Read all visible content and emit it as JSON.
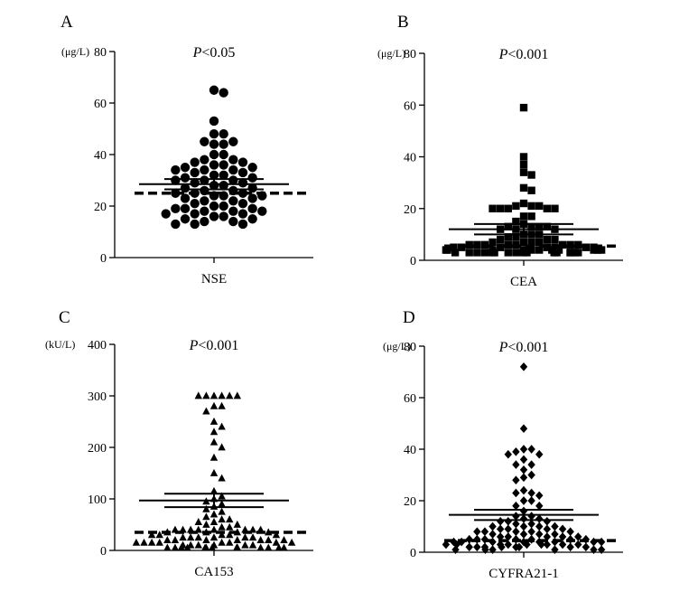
{
  "figure": {
    "x_axis_category_note": "single group per panel",
    "marker_color": "#000000"
  },
  "chart_data": [
    {
      "type": "scatter",
      "panel": "A",
      "title": "P<0.05",
      "p_prefix": "P",
      "p_rest": "<0.05",
      "xlabel": "NSE",
      "ylabel": "(μg/L)",
      "ylim": [
        0,
        80
      ],
      "yticks": [
        0,
        20,
        40,
        60,
        80
      ],
      "marker": "circle",
      "mean": 28.5,
      "sem_upper": 30.5,
      "sem_lower": 26.5,
      "cutoff": 25,
      "values": [
        13,
        13,
        13,
        14,
        14,
        15,
        15,
        16,
        16,
        17,
        17,
        17,
        18,
        18,
        18,
        19,
        19,
        19,
        20,
        20,
        21,
        21,
        22,
        22,
        23,
        23,
        24,
        24,
        24,
        25,
        25,
        25,
        26,
        26,
        27,
        27,
        28,
        28,
        29,
        29,
        30,
        30,
        30,
        31,
        31,
        32,
        32,
        33,
        33,
        34,
        34,
        34,
        35,
        35,
        36,
        36,
        37,
        37,
        38,
        38,
        40,
        40,
        44,
        44,
        45,
        45,
        48,
        48,
        53,
        64,
        65
      ]
    },
    {
      "type": "scatter",
      "panel": "B",
      "title": "P<0.001",
      "p_prefix": "P",
      "p_rest": "<0.001",
      "xlabel": "CEA",
      "ylabel": "(μg/L)",
      "ylim": [
        0,
        80
      ],
      "yticks": [
        0,
        20,
        40,
        60,
        80
      ],
      "marker": "square",
      "mean": 12,
      "sem_upper": 14,
      "sem_lower": 10,
      "cutoff": 5.5,
      "values": [
        3,
        3,
        3,
        3,
        3,
        3,
        3,
        3,
        3,
        3,
        3,
        3,
        3,
        3,
        3,
        3,
        4,
        4,
        4,
        4,
        4,
        4,
        4,
        4,
        4,
        4,
        4,
        4,
        5,
        5,
        5,
        5,
        5,
        5,
        5,
        6,
        6,
        6,
        6,
        6,
        6,
        6,
        6,
        7,
        7,
        7,
        7,
        8,
        8,
        8,
        9,
        9,
        10,
        10,
        10,
        12,
        12,
        12,
        13,
        13,
        13,
        13,
        14,
        15,
        17,
        17,
        20,
        20,
        20,
        20,
        20,
        21,
        21,
        21,
        22,
        27,
        28,
        33,
        34,
        37,
        40,
        59
      ]
    },
    {
      "type": "scatter",
      "panel": "C",
      "title": "P<0.001",
      "p_prefix": "P",
      "p_rest": "<0.001",
      "xlabel": "CA153",
      "ylabel": "(kU/L)",
      "ylim": [
        0,
        400
      ],
      "yticks": [
        0,
        100,
        200,
        300,
        400
      ],
      "marker": "triangle",
      "mean": 97,
      "sem_upper": 110,
      "sem_lower": 84,
      "cutoff": 35,
      "values": [
        5,
        5,
        5,
        5,
        5,
        5,
        5,
        5,
        5,
        5,
        5,
        5,
        5,
        5,
        10,
        10,
        10,
        10,
        10,
        10,
        15,
        15,
        15,
        15,
        15,
        15,
        15,
        15,
        20,
        20,
        20,
        20,
        20,
        20,
        20,
        25,
        25,
        25,
        25,
        25,
        25,
        30,
        30,
        30,
        30,
        30,
        35,
        35,
        35,
        35,
        40,
        40,
        40,
        40,
        40,
        40,
        40,
        40,
        45,
        45,
        50,
        50,
        55,
        55,
        60,
        60,
        65,
        70,
        75,
        80,
        85,
        90,
        95,
        100,
        105,
        115,
        140,
        150,
        180,
        200,
        210,
        230,
        240,
        250,
        270,
        280,
        280,
        300,
        300,
        300,
        300,
        300,
        300
      ]
    },
    {
      "type": "scatter",
      "panel": "D",
      "title": "P<0.001",
      "p_prefix": "P",
      "p_rest": "<0.001",
      "xlabel": "CYFRA21-1",
      "ylabel": "(μg/L)",
      "ylim": [
        0,
        80
      ],
      "yticks": [
        0,
        20,
        40,
        60,
        80
      ],
      "marker": "diamond",
      "mean": 14.5,
      "sem_upper": 16.5,
      "sem_lower": 12.5,
      "cutoff": 4.5,
      "values": [
        1,
        1,
        1,
        1,
        1,
        1,
        2,
        2,
        2,
        2,
        2,
        2,
        2,
        2,
        3,
        3,
        3,
        3,
        3,
        3,
        3,
        3,
        3,
        4,
        4,
        4,
        4,
        4,
        4,
        4,
        4,
        5,
        5,
        5,
        5,
        5,
        5,
        5,
        6,
        6,
        6,
        6,
        6,
        7,
        7,
        7,
        7,
        8,
        8,
        8,
        8,
        8,
        9,
        9,
        9,
        9,
        10,
        10,
        10,
        10,
        11,
        11,
        12,
        12,
        12,
        13,
        13,
        14,
        14,
        16,
        18,
        18,
        20,
        20,
        22,
        23,
        23,
        24,
        28,
        29,
        30,
        32,
        34,
        34,
        36,
        38,
        38,
        39,
        40,
        40,
        48,
        72
      ]
    }
  ]
}
